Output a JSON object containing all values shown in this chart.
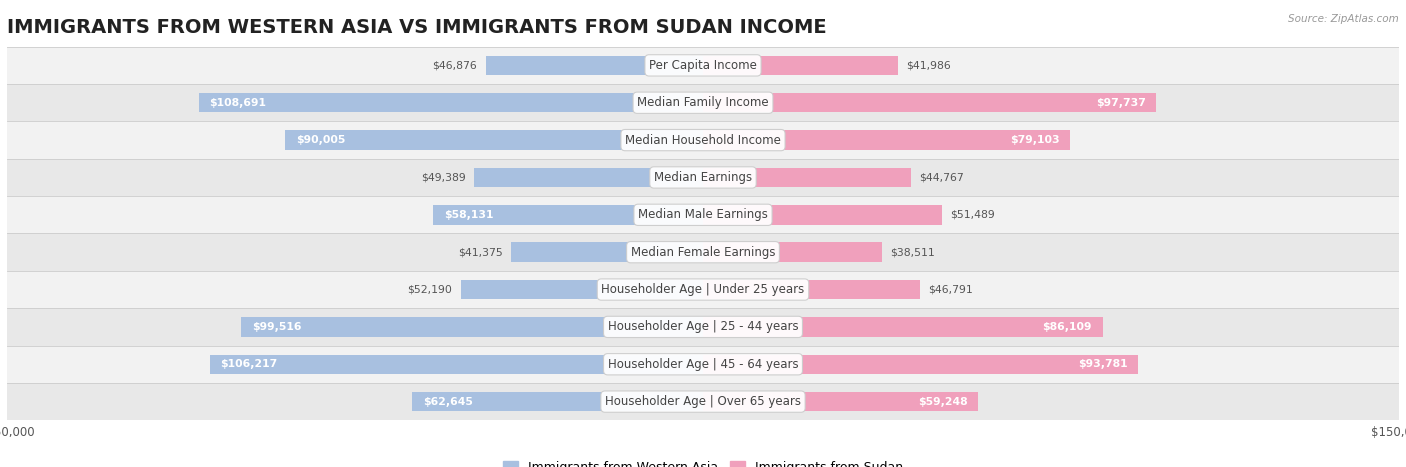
{
  "title": "IMMIGRANTS FROM WESTERN ASIA VS IMMIGRANTS FROM SUDAN INCOME",
  "source": "Source: ZipAtlas.com",
  "categories": [
    "Per Capita Income",
    "Median Family Income",
    "Median Household Income",
    "Median Earnings",
    "Median Male Earnings",
    "Median Female Earnings",
    "Householder Age | Under 25 years",
    "Householder Age | 25 - 44 years",
    "Householder Age | 45 - 64 years",
    "Householder Age | Over 65 years"
  ],
  "western_asia_values": [
    46876,
    108691,
    90005,
    49389,
    58131,
    41375,
    52190,
    99516,
    106217,
    62645
  ],
  "sudan_values": [
    41986,
    97737,
    79103,
    44767,
    51489,
    38511,
    46791,
    86109,
    93781,
    59248
  ],
  "western_asia_color": "#a8c0e0",
  "sudan_color": "#f0a0bc",
  "western_asia_dark": "#6b9fd4",
  "sudan_dark": "#e8789a",
  "max_value": 150000,
  "bar_height": 0.52,
  "legend_western_asia": "Immigrants from Western Asia",
  "legend_sudan": "Immigrants from Sudan",
  "title_fontsize": 14,
  "label_fontsize": 8.5,
  "value_fontsize": 7.8,
  "axis_label_fontsize": 8.5,
  "row_colors": [
    "#f2f2f2",
    "#e8e8e8"
  ],
  "label_box_color": "#ffffff",
  "label_box_edge": "#cccccc",
  "inside_text_color": "#ffffff",
  "outside_text_color": "#555555",
  "inside_threshold": 0.35
}
